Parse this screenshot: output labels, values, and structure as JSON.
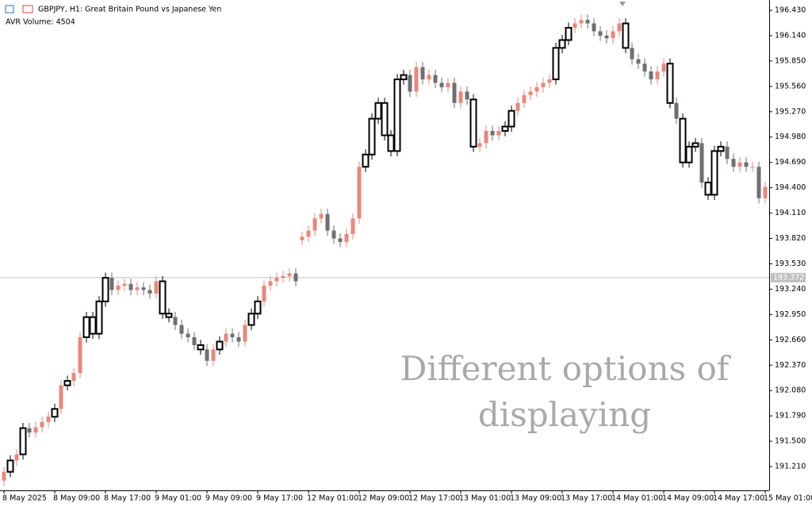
{
  "chart_data": {
    "type": "candlestick",
    "title": "GBPJPY, H1:  Great Britain Pound vs Japanese Yen",
    "indicator": "AVR Volume: 4504",
    "watermark": [
      "Different options of",
      "displaying"
    ],
    "ylim": [
      190.938,
      196.548
    ],
    "yticks": [
      {
        "value": 196.43,
        "label": "196.430"
      },
      {
        "value": 196.14,
        "label": "196.140"
      },
      {
        "value": 195.85,
        "label": "195.850"
      },
      {
        "value": 195.56,
        "label": "195.560"
      },
      {
        "value": 195.27,
        "label": "195.270"
      },
      {
        "value": 194.98,
        "label": "194.980"
      },
      {
        "value": 194.69,
        "label": "194.690"
      },
      {
        "value": 194.4,
        "label": "194.400"
      },
      {
        "value": 194.11,
        "label": "194.110"
      },
      {
        "value": 193.82,
        "label": "193.820"
      },
      {
        "value": 193.53,
        "label": "193.530"
      },
      {
        "value": 193.24,
        "label": "193.240"
      },
      {
        "value": 192.95,
        "label": "192.950"
      },
      {
        "value": 192.66,
        "label": "192.660"
      },
      {
        "value": 192.37,
        "label": "192.370"
      },
      {
        "value": 192.08,
        "label": "192.080"
      },
      {
        "value": 191.79,
        "label": "191.790"
      },
      {
        "value": 191.5,
        "label": "191.500"
      },
      {
        "value": 191.21,
        "label": "191.210"
      }
    ],
    "price_line": {
      "value": 193.372,
      "label": "193.372"
    },
    "up_color": "#e9877b",
    "down_color": "#6d6f72",
    "highlight_color": "#000000",
    "high_volume_candles": [
      1,
      3,
      8,
      10,
      13,
      14,
      15,
      16,
      25,
      26,
      31,
      34,
      39,
      40,
      57,
      58,
      59,
      60,
      61,
      62,
      63,
      74,
      79,
      80,
      87,
      88,
      89,
      98,
      105,
      107,
      108,
      109,
      111,
      112,
      113
    ],
    "categories": [
      "8 May 2025",
      null,
      null,
      null,
      null,
      null,
      null,
      null,
      "8 May 09:00",
      null,
      null,
      null,
      null,
      null,
      null,
      null,
      "8 May 17:00",
      null,
      null,
      null,
      null,
      null,
      null,
      null,
      "9 May 01:00",
      null,
      null,
      null,
      null,
      null,
      null,
      null,
      "9 May 09:00",
      null,
      null,
      null,
      null,
      null,
      null,
      null,
      "9 May 17:00",
      null,
      null,
      null,
      null,
      null,
      null,
      null,
      "12 May 01:00",
      null,
      null,
      null,
      null,
      null,
      null,
      null,
      "12 May 09:00",
      null,
      null,
      null,
      null,
      null,
      null,
      null,
      "12 May 17:00",
      null,
      null,
      null,
      null,
      null,
      null,
      null,
      "13 May 01:00",
      null,
      null,
      null,
      null,
      null,
      null,
      null,
      "13 May 09:00",
      null,
      null,
      null,
      null,
      null,
      null,
      null,
      "13 May 17:00",
      null,
      null,
      null,
      null,
      null,
      null,
      null,
      "14 May 01:00",
      null,
      null,
      null,
      null,
      null,
      null,
      null,
      "14 May 09:00",
      null,
      null,
      null,
      null,
      null,
      null,
      null,
      "14 May 17:00",
      null,
      null,
      null,
      null,
      null,
      null,
      null,
      "15 May 01:00"
    ],
    "open": [
      191.05,
      191.15,
      191.28,
      191.35,
      191.65,
      191.6,
      191.66,
      191.72,
      191.78,
      191.87,
      192.14,
      192.19,
      192.28,
      192.69,
      192.92,
      192.73,
      193.1,
      193.37,
      193.23,
      193.28,
      193.3,
      193.23,
      193.26,
      193.23,
      193.19,
      193.33,
      192.96,
      192.92,
      192.83,
      192.73,
      192.69,
      192.6,
      192.55,
      192.42,
      192.55,
      192.64,
      192.73,
      192.69,
      192.64,
      192.83,
      192.96,
      193.1,
      193.28,
      193.33,
      193.37,
      193.39,
      193.42,
      193.8,
      193.84,
      193.91,
      194.05,
      194.1,
      193.91,
      193.82,
      193.78,
      193.87,
      194.05,
      194.64,
      194.78,
      195.19,
      195.37,
      195,
      194.82,
      195.64,
      195.69,
      195.5,
      195.78,
      195.64,
      195.69,
      195.6,
      195.55,
      195.6,
      195.37,
      195.5,
      195.41,
      194.87,
      194.91,
      195.05,
      195,
      195.05,
      195.1,
      195.28,
      195.37,
      195.46,
      195.5,
      195.55,
      195.6,
      195.64,
      196,
      196.09,
      196.23,
      196.28,
      196.32,
      196.28,
      196.19,
      196.14,
      196.11,
      196.19,
      196.28,
      196,
      195.87,
      195.82,
      195.73,
      195.64,
      195.73,
      195.82,
      195.37,
      195.19,
      194.69,
      194.87,
      194.91,
      194.46,
      194.32,
      194.82,
      194.87,
      194.73,
      194.64,
      194.69,
      194.64,
      194.64,
      194.28
    ],
    "high": [
      191.21,
      191.34,
      191.41,
      191.71,
      191.71,
      191.72,
      191.78,
      191.84,
      191.93,
      192.2,
      192.25,
      192.34,
      192.75,
      192.98,
      192.98,
      193.16,
      193.43,
      193.43,
      193.34,
      193.36,
      193.36,
      193.32,
      193.32,
      193.29,
      193.39,
      193.39,
      193.02,
      192.98,
      192.89,
      192.79,
      192.75,
      192.66,
      192.61,
      192.61,
      192.7,
      192.79,
      192.79,
      192.75,
      192.89,
      193.02,
      193.16,
      193.34,
      193.39,
      193.43,
      193.45,
      193.48,
      193.48,
      193.9,
      193.97,
      194.11,
      194.16,
      194.16,
      193.97,
      193.88,
      193.93,
      194.11,
      194.7,
      194.84,
      195.25,
      195.43,
      195.43,
      195.06,
      195.7,
      195.75,
      195.75,
      195.84,
      195.84,
      195.75,
      195.75,
      195.66,
      195.66,
      195.66,
      195.56,
      195.56,
      195.47,
      194.97,
      195.11,
      195.11,
      195.11,
      195.16,
      195.34,
      195.43,
      195.52,
      195.56,
      195.61,
      195.66,
      195.7,
      196.06,
      196.15,
      196.29,
      196.34,
      196.38,
      196.38,
      196.34,
      196.25,
      196.2,
      196.25,
      196.34,
      196.34,
      196.06,
      195.93,
      195.88,
      195.79,
      195.79,
      195.88,
      195.88,
      195.43,
      195.25,
      194.93,
      194.97,
      194.97,
      194.52,
      194.88,
      194.93,
      194.93,
      194.79,
      194.75,
      194.75,
      194.7,
      194.7,
      194.47
    ],
    "low": [
      190.99,
      191.09,
      191.22,
      191.29,
      191.54,
      191.54,
      191.6,
      191.66,
      191.72,
      191.81,
      192.08,
      192.13,
      192.22,
      192.63,
      192.67,
      192.67,
      193.04,
      193.17,
      193.17,
      193.22,
      193.17,
      193.17,
      193.17,
      193.13,
      193.13,
      192.9,
      192.86,
      192.77,
      192.67,
      192.63,
      192.54,
      192.49,
      192.36,
      192.36,
      192.49,
      192.58,
      192.63,
      192.58,
      192.58,
      192.77,
      192.9,
      193.04,
      193.22,
      193.27,
      193.31,
      193.33,
      193.27,
      193.74,
      193.78,
      193.85,
      193.99,
      193.85,
      193.76,
      193.72,
      193.72,
      193.81,
      193.99,
      194.58,
      194.72,
      195.13,
      194.94,
      194.76,
      194.76,
      195.58,
      195.44,
      195.44,
      195.58,
      195.58,
      195.54,
      195.49,
      195.49,
      195.31,
      195.31,
      195.35,
      194.81,
      194.81,
      194.85,
      194.94,
      194.94,
      194.99,
      195.04,
      195.22,
      195.31,
      195.4,
      195.44,
      195.49,
      195.54,
      195.58,
      195.94,
      196.03,
      196.17,
      196.22,
      196.22,
      196.13,
      196.08,
      196.05,
      196.05,
      196.13,
      195.94,
      195.81,
      195.76,
      195.67,
      195.58,
      195.58,
      195.67,
      195.31,
      195.13,
      194.63,
      194.63,
      194.81,
      194.4,
      194.26,
      194.26,
      194.76,
      194.67,
      194.58,
      194.58,
      194.58,
      194.58,
      194.22,
      194.22
    ],
    "close": [
      191.15,
      191.28,
      191.35,
      191.65,
      191.6,
      191.66,
      191.72,
      191.78,
      191.87,
      192.14,
      192.19,
      192.28,
      192.69,
      192.92,
      192.73,
      193.1,
      193.37,
      193.23,
      193.28,
      193.3,
      193.23,
      193.26,
      193.23,
      193.19,
      193.33,
      192.96,
      192.92,
      192.83,
      192.73,
      192.69,
      192.6,
      192.55,
      192.42,
      192.55,
      192.64,
      192.73,
      192.69,
      192.64,
      192.83,
      192.96,
      193.1,
      193.28,
      193.33,
      193.37,
      193.39,
      193.42,
      193.33,
      193.84,
      193.91,
      194.05,
      194.1,
      193.91,
      193.82,
      193.78,
      193.87,
      194.05,
      194.64,
      194.78,
      195.19,
      195.37,
      195,
      194.82,
      195.64,
      195.69,
      195.5,
      195.78,
      195.64,
      195.69,
      195.6,
      195.55,
      195.6,
      195.37,
      195.5,
      195.41,
      194.87,
      194.91,
      195.05,
      195,
      195.05,
      195.1,
      195.28,
      195.37,
      195.46,
      195.5,
      195.55,
      195.6,
      195.64,
      196,
      196.09,
      196.23,
      196.28,
      196.32,
      196.28,
      196.19,
      196.14,
      196.11,
      196.19,
      196.28,
      196,
      195.87,
      195.82,
      195.73,
      195.64,
      195.73,
      195.82,
      195.37,
      195.19,
      194.69,
      194.87,
      194.91,
      194.46,
      194.32,
      194.82,
      194.87,
      194.73,
      194.64,
      194.69,
      194.64,
      194.64,
      194.28,
      194.41
    ]
  }
}
